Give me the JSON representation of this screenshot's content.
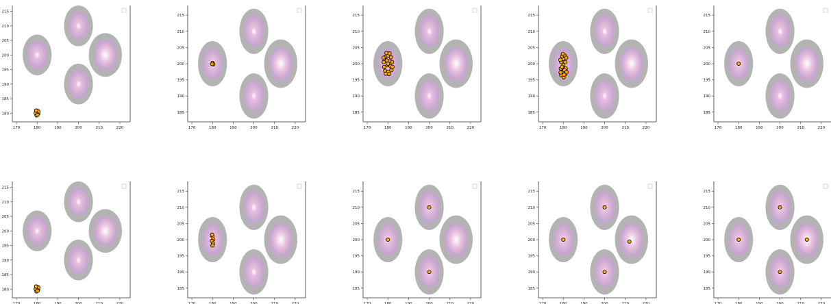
{
  "palette": {
    "ring_outer": "#b3b3b3",
    "ring_mid": "#c7a6cf",
    "ring_inner": "#e8bfe0",
    "core": "#ffffff",
    "marker_fill": "#ffa500",
    "marker_edge": "#000000",
    "axis": "#333333"
  },
  "chart_data": [
    {
      "type": "scatter",
      "row": 1,
      "col": 1,
      "xlim": [
        168,
        225
      ],
      "ylim": [
        177,
        217
      ],
      "xticks": [
        170,
        180,
        190,
        200,
        210,
        220
      ],
      "yticks": [
        180,
        185,
        190,
        195,
        200,
        205,
        210,
        215
      ],
      "targets": [
        {
          "x": 180,
          "y": 200,
          "r": 7,
          "w": 1.0
        },
        {
          "x": 200,
          "y": 210,
          "r": 7,
          "w": 0.8
        },
        {
          "x": 213,
          "y": 200,
          "r": 7.5,
          "w": 1.4
        },
        {
          "x": 200,
          "y": 190,
          "r": 7,
          "w": 0.8
        }
      ],
      "points": [
        {
          "x": 179.6,
          "y": 180.4
        },
        {
          "x": 180.4,
          "y": 180.2
        },
        {
          "x": 179.9,
          "y": 179.6
        },
        {
          "x": 180.5,
          "y": 179.8
        },
        {
          "x": 179.3,
          "y": 180.0
        },
        {
          "x": 180.1,
          "y": 180.8
        },
        {
          "x": 179.7,
          "y": 179.2
        },
        {
          "x": 180.6,
          "y": 180.6
        },
        {
          "x": 179.5,
          "y": 180.9
        },
        {
          "x": 180.2,
          "y": 179.4
        }
      ]
    },
    {
      "type": "scatter",
      "row": 1,
      "col": 2,
      "xlim": [
        168,
        225
      ],
      "ylim": [
        182,
        218
      ],
      "xticks": [
        170,
        180,
        190,
        200,
        210,
        220
      ],
      "yticks": [
        185,
        190,
        195,
        200,
        205,
        210,
        215
      ],
      "targets": [
        {
          "x": 180,
          "y": 200,
          "r": 7,
          "w": 1.0
        },
        {
          "x": 200,
          "y": 210,
          "r": 7,
          "w": 0.8
        },
        {
          "x": 213,
          "y": 200,
          "r": 7.5,
          "w": 1.4
        },
        {
          "x": 200,
          "y": 190,
          "r": 7,
          "w": 0.8
        }
      ],
      "points": [
        {
          "x": 180.0,
          "y": 200.2
        },
        {
          "x": 180.3,
          "y": 199.8
        },
        {
          "x": 179.8,
          "y": 199.9
        }
      ]
    },
    {
      "type": "scatter",
      "row": 1,
      "col": 3,
      "xlim": [
        168,
        225
      ],
      "ylim": [
        182,
        218
      ],
      "xticks": [
        170,
        180,
        190,
        200,
        210,
        220
      ],
      "yticks": [
        185,
        190,
        195,
        200,
        205,
        210,
        215
      ],
      "targets": [
        {
          "x": 180,
          "y": 200,
          "r": 7,
          "w": 1.0
        },
        {
          "x": 200,
          "y": 210,
          "r": 7,
          "w": 0.8
        },
        {
          "x": 213,
          "y": 200,
          "r": 7.5,
          "w": 1.4
        },
        {
          "x": 200,
          "y": 190,
          "r": 7,
          "w": 0.8
        }
      ],
      "points": [
        {
          "x": 178.5,
          "y": 202.0
        },
        {
          "x": 180.0,
          "y": 202.5
        },
        {
          "x": 181.5,
          "y": 202.0
        },
        {
          "x": 178.0,
          "y": 200.5
        },
        {
          "x": 179.5,
          "y": 201.0
        },
        {
          "x": 181.0,
          "y": 200.8
        },
        {
          "x": 182.0,
          "y": 200.5
        },
        {
          "x": 178.2,
          "y": 199.0
        },
        {
          "x": 179.8,
          "y": 199.5
        },
        {
          "x": 181.3,
          "y": 199.2
        },
        {
          "x": 178.7,
          "y": 197.8
        },
        {
          "x": 180.2,
          "y": 197.5
        },
        {
          "x": 181.7,
          "y": 198.0
        },
        {
          "x": 179.3,
          "y": 203.3
        },
        {
          "x": 180.8,
          "y": 203.2
        },
        {
          "x": 180.5,
          "y": 196.8
        },
        {
          "x": 179.0,
          "y": 196.9
        },
        {
          "x": 182.2,
          "y": 199.0
        },
        {
          "x": 177.9,
          "y": 201.8
        },
        {
          "x": 180.0,
          "y": 200.0
        }
      ]
    },
    {
      "type": "scatter",
      "row": 1,
      "col": 4,
      "xlim": [
        168,
        225
      ],
      "ylim": [
        182,
        218
      ],
      "xticks": [
        170,
        180,
        190,
        200,
        210,
        220
      ],
      "yticks": [
        185,
        190,
        195,
        200,
        205,
        210,
        215
      ],
      "targets": [
        {
          "x": 180,
          "y": 200,
          "r": 7,
          "w": 1.0
        },
        {
          "x": 200,
          "y": 210,
          "r": 7,
          "w": 0.8
        },
        {
          "x": 213,
          "y": 200,
          "r": 7.5,
          "w": 1.4
        },
        {
          "x": 200,
          "y": 190,
          "r": 7,
          "w": 0.8
        }
      ],
      "points": [
        {
          "x": 180.0,
          "y": 201.5
        },
        {
          "x": 179.0,
          "y": 200.5
        },
        {
          "x": 181.0,
          "y": 200.5
        },
        {
          "x": 180.0,
          "y": 199.5
        },
        {
          "x": 178.8,
          "y": 198.5
        },
        {
          "x": 181.2,
          "y": 198.5
        },
        {
          "x": 180.0,
          "y": 197.5
        },
        {
          "x": 179.0,
          "y": 196.5
        },
        {
          "x": 181.0,
          "y": 196.8
        },
        {
          "x": 180.2,
          "y": 195.8
        },
        {
          "x": 179.5,
          "y": 202.3
        },
        {
          "x": 180.8,
          "y": 202.5
        },
        {
          "x": 179.4,
          "y": 199.0
        },
        {
          "x": 180.6,
          "y": 198.0
        },
        {
          "x": 179.8,
          "y": 203.0
        },
        {
          "x": 181.4,
          "y": 201.8
        },
        {
          "x": 178.6,
          "y": 201.2
        },
        {
          "x": 181.6,
          "y": 197.4
        },
        {
          "x": 178.7,
          "y": 197.3
        },
        {
          "x": 180.4,
          "y": 196.6
        }
      ]
    },
    {
      "type": "scatter",
      "row": 1,
      "col": 5,
      "xlim": [
        168,
        225
      ],
      "ylim": [
        182,
        218
      ],
      "xticks": [
        170,
        180,
        190,
        200,
        210,
        220
      ],
      "yticks": [
        185,
        190,
        195,
        200,
        205,
        210,
        215
      ],
      "targets": [
        {
          "x": 180,
          "y": 200,
          "r": 7,
          "w": 1.0
        },
        {
          "x": 200,
          "y": 210,
          "r": 7,
          "w": 0.8
        },
        {
          "x": 213,
          "y": 200,
          "r": 7.5,
          "w": 1.4
        },
        {
          "x": 200,
          "y": 190,
          "r": 7,
          "w": 0.8
        }
      ],
      "points": [
        {
          "x": 180.0,
          "y": 200.0
        }
      ]
    },
    {
      "type": "scatter",
      "row": 2,
      "col": 1,
      "xlim": [
        168,
        225
      ],
      "ylim": [
        177,
        217
      ],
      "xticks": [
        170,
        180,
        190,
        200,
        210,
        220
      ],
      "yticks": [
        180,
        185,
        190,
        195,
        200,
        205,
        210,
        215
      ],
      "targets": [
        {
          "x": 180,
          "y": 200,
          "r": 7,
          "w": 1.0
        },
        {
          "x": 200,
          "y": 210,
          "r": 7,
          "w": 0.8
        },
        {
          "x": 213,
          "y": 200,
          "r": 7.5,
          "w": 1.4
        },
        {
          "x": 200,
          "y": 190,
          "r": 7,
          "w": 0.8
        }
      ],
      "points": [
        {
          "x": 179.6,
          "y": 180.4
        },
        {
          "x": 180.4,
          "y": 180.2
        },
        {
          "x": 179.9,
          "y": 179.6
        },
        {
          "x": 180.5,
          "y": 179.8
        },
        {
          "x": 179.3,
          "y": 180.0
        },
        {
          "x": 180.1,
          "y": 180.8
        },
        {
          "x": 179.7,
          "y": 179.2
        },
        {
          "x": 180.6,
          "y": 180.6
        },
        {
          "x": 179.5,
          "y": 180.9
        },
        {
          "x": 180.2,
          "y": 179.4
        }
      ]
    },
    {
      "type": "scatter",
      "row": 2,
      "col": 2,
      "xlim": [
        168,
        225
      ],
      "ylim": [
        182,
        218
      ],
      "xticks": [
        170,
        180,
        190,
        200,
        210,
        220
      ],
      "yticks": [
        185,
        190,
        195,
        200,
        205,
        210,
        215
      ],
      "targets": [
        {
          "x": 180,
          "y": 200,
          "r": 7,
          "w": 1.0
        },
        {
          "x": 200,
          "y": 210,
          "r": 7,
          "w": 0.8
        },
        {
          "x": 213,
          "y": 200,
          "r": 7.5,
          "w": 1.4
        },
        {
          "x": 200,
          "y": 190,
          "r": 7,
          "w": 0.8
        }
      ],
      "points": [
        {
          "x": 180.0,
          "y": 201.0
        },
        {
          "x": 180.3,
          "y": 200.0
        },
        {
          "x": 179.7,
          "y": 199.6
        },
        {
          "x": 180.2,
          "y": 198.8
        },
        {
          "x": 179.8,
          "y": 201.5
        },
        {
          "x": 180.0,
          "y": 198.2
        }
      ]
    },
    {
      "type": "scatter",
      "row": 2,
      "col": 3,
      "xlim": [
        168,
        225
      ],
      "ylim": [
        182,
        218
      ],
      "xticks": [
        170,
        180,
        190,
        200,
        210,
        220
      ],
      "yticks": [
        185,
        190,
        195,
        200,
        205,
        210,
        215
      ],
      "targets": [
        {
          "x": 180,
          "y": 200,
          "r": 7,
          "w": 1.0
        },
        {
          "x": 200,
          "y": 210,
          "r": 7,
          "w": 0.8
        },
        {
          "x": 213,
          "y": 200,
          "r": 7.5,
          "w": 1.4
        },
        {
          "x": 200,
          "y": 190,
          "r": 7,
          "w": 0.8
        }
      ],
      "points": [
        {
          "x": 180.0,
          "y": 200.0
        },
        {
          "x": 200.0,
          "y": 210.0
        },
        {
          "x": 200.0,
          "y": 190.0
        }
      ]
    },
    {
      "type": "scatter",
      "row": 2,
      "col": 4,
      "xlim": [
        168,
        225
      ],
      "ylim": [
        182,
        218
      ],
      "xticks": [
        170,
        180,
        190,
        200,
        210,
        220
      ],
      "yticks": [
        185,
        190,
        195,
        200,
        205,
        210,
        215
      ],
      "targets": [
        {
          "x": 180,
          "y": 200,
          "r": 7,
          "w": 1.0
        },
        {
          "x": 200,
          "y": 210,
          "r": 7,
          "w": 0.8
        },
        {
          "x": 213,
          "y": 200,
          "r": 7.5,
          "w": 1.4
        },
        {
          "x": 200,
          "y": 190,
          "r": 7,
          "w": 0.8
        }
      ],
      "points": [
        {
          "x": 180.0,
          "y": 200.0
        },
        {
          "x": 200.0,
          "y": 210.0
        },
        {
          "x": 212.0,
          "y": 199.4
        },
        {
          "x": 200.0,
          "y": 190.0
        }
      ]
    },
    {
      "type": "scatter",
      "row": 2,
      "col": 5,
      "xlim": [
        168,
        225
      ],
      "ylim": [
        182,
        218
      ],
      "xticks": [
        170,
        180,
        190,
        200,
        210,
        220
      ],
      "yticks": [
        185,
        190,
        195,
        200,
        205,
        210,
        215
      ],
      "targets": [
        {
          "x": 180,
          "y": 200,
          "r": 7,
          "w": 1.0
        },
        {
          "x": 200,
          "y": 210,
          "r": 7,
          "w": 0.8
        },
        {
          "x": 213,
          "y": 200,
          "r": 7.5,
          "w": 1.4
        },
        {
          "x": 200,
          "y": 190,
          "r": 7,
          "w": 0.8
        }
      ],
      "points": [
        {
          "x": 180.0,
          "y": 200.0
        },
        {
          "x": 200.0,
          "y": 210.0
        },
        {
          "x": 213.0,
          "y": 200.0
        },
        {
          "x": 200.0,
          "y": 190.0
        }
      ]
    }
  ]
}
